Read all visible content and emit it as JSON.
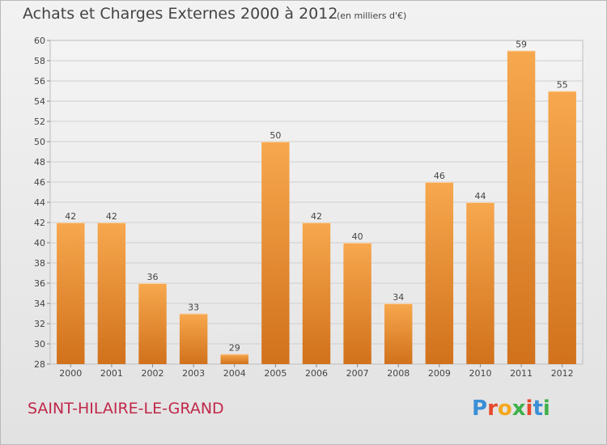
{
  "header": {
    "title": "Achats et Charges Externes 2000 à 2012",
    "subtitle": "(en milliers d'€)"
  },
  "footer": {
    "commune": "SAINT-HILAIRE-LE-GRAND",
    "logo": {
      "text": "Proxiti",
      "letters": [
        {
          "char": "P",
          "color": "#3a8fd6"
        },
        {
          "char": "r",
          "color": "#e64a2e"
        },
        {
          "char": "o",
          "color": "#f4a81d"
        },
        {
          "char": "x",
          "color": "#3fb14a"
        },
        {
          "char": "i",
          "color": "#e64a2e"
        },
        {
          "char": "t",
          "color": "#3a8fd6"
        },
        {
          "char": "i",
          "color": "#3fb14a"
        }
      ]
    }
  },
  "chart_data": {
    "type": "bar",
    "title": "Achats et Charges Externes 2000 à 2012",
    "subtitle": "(en milliers d'€)",
    "categories": [
      "2000",
      "2001",
      "2002",
      "2003",
      "2004",
      "2005",
      "2006",
      "2007",
      "2008",
      "2009",
      "2010",
      "2011",
      "2012"
    ],
    "values": [
      42,
      42,
      36,
      33,
      29,
      50,
      42,
      40,
      34,
      46,
      44,
      59,
      55
    ],
    "ylim": [
      28,
      60
    ],
    "yticks": [
      28,
      30,
      32,
      34,
      36,
      38,
      40,
      42,
      44,
      46,
      48,
      50,
      52,
      54,
      56,
      58,
      60
    ],
    "grid": true,
    "bar_color_top": "#f7a84e",
    "bar_color_bottom": "#d1711c",
    "xlabel": "",
    "ylabel": ""
  }
}
